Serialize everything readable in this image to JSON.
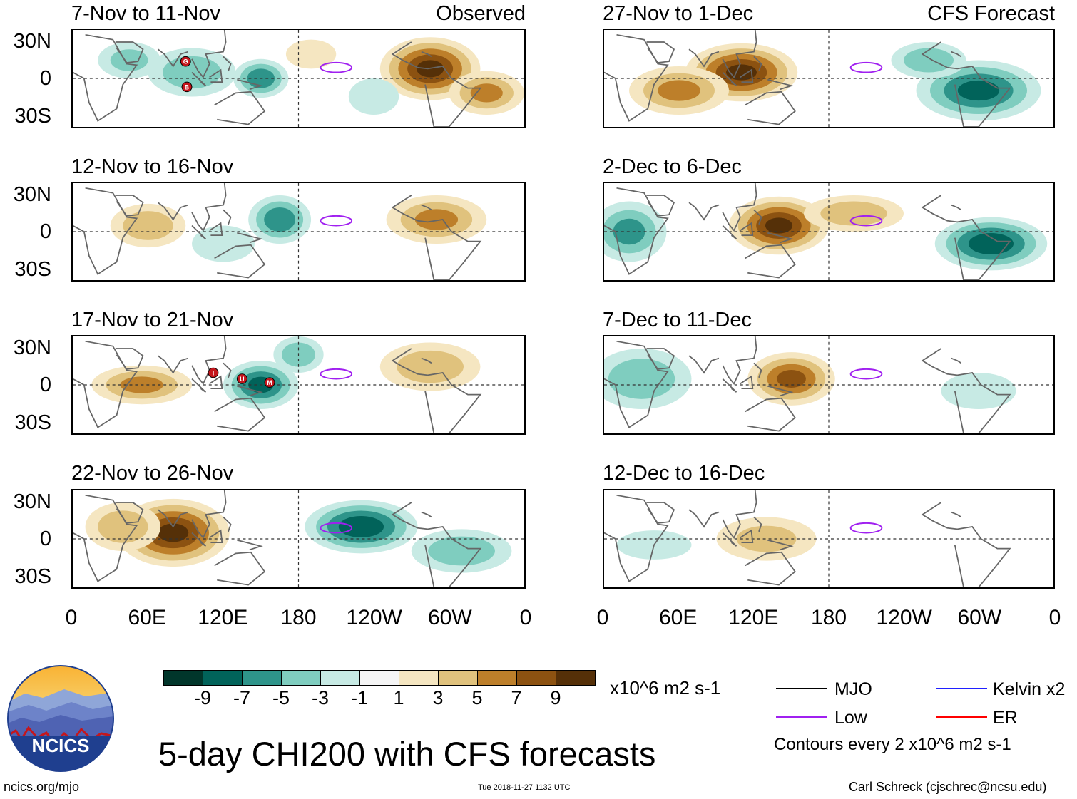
{
  "panels": [
    {
      "title": "7-Nov to 11-Nov",
      "tag": "Observed",
      "blobs": [
        {
          "sign": 1,
          "mag": 10,
          "lon": 285,
          "lat": 8,
          "rx": 40,
          "ry": 26
        },
        {
          "sign": 1,
          "mag": 6,
          "lon": 330,
          "lat": -12,
          "rx": 30,
          "ry": 18
        },
        {
          "sign": -1,
          "mag": 7,
          "lon": 150,
          "lat": 0,
          "rx": 22,
          "ry": 16
        },
        {
          "sign": -1,
          "mag": 5,
          "lon": 95,
          "lat": 5,
          "rx": 35,
          "ry": 20
        },
        {
          "sign": -1,
          "mag": 4,
          "lon": 45,
          "lat": 15,
          "rx": 25,
          "ry": 15
        },
        {
          "sign": -1,
          "mag": 3,
          "lon": 240,
          "lat": -15,
          "rx": 20,
          "ry": 15
        },
        {
          "sign": 1,
          "mag": 3,
          "lon": 190,
          "lat": 20,
          "rx": 20,
          "ry": 12
        }
      ],
      "cyclones": [
        {
          "letter": "G",
          "lon": 90,
          "lat": 14
        },
        {
          "letter": "B",
          "lon": 91,
          "lat": -7
        }
      ]
    },
    {
      "title": "27-Nov to 1-Dec",
      "tag": "CFS Forecast",
      "blobs": [
        {
          "sign": 1,
          "mag": 10,
          "lon": 110,
          "lat": 5,
          "rx": 45,
          "ry": 24
        },
        {
          "sign": 1,
          "mag": 6,
          "lon": 60,
          "lat": -10,
          "rx": 40,
          "ry": 20
        },
        {
          "sign": -1,
          "mag": 8,
          "lon": 300,
          "lat": -10,
          "rx": 50,
          "ry": 25
        },
        {
          "sign": -1,
          "mag": 5,
          "lon": 260,
          "lat": 15,
          "rx": 30,
          "ry": 15
        }
      ],
      "cyclones": []
    },
    {
      "title": "12-Nov to 16-Nov",
      "tag": "",
      "blobs": [
        {
          "sign": 1,
          "mag": 6,
          "lon": 290,
          "lat": 10,
          "rx": 40,
          "ry": 20
        },
        {
          "sign": 1,
          "mag": 5,
          "lon": 60,
          "lat": 5,
          "rx": 30,
          "ry": 18
        },
        {
          "sign": -1,
          "mag": 7,
          "lon": 165,
          "lat": 10,
          "rx": 25,
          "ry": 20
        },
        {
          "sign": -1,
          "mag": 3,
          "lon": 120,
          "lat": -10,
          "rx": 25,
          "ry": 15
        }
      ],
      "cyclones": []
    },
    {
      "title": "2-Dec to 6-Dec",
      "tag": "",
      "blobs": [
        {
          "sign": 1,
          "mag": 10,
          "lon": 140,
          "lat": 5,
          "rx": 40,
          "ry": 24
        },
        {
          "sign": 1,
          "mag": 5,
          "lon": 200,
          "lat": 15,
          "rx": 40,
          "ry": 15
        },
        {
          "sign": -1,
          "mag": 9,
          "lon": 310,
          "lat": -10,
          "rx": 45,
          "ry": 22
        },
        {
          "sign": -1,
          "mag": 6,
          "lon": 20,
          "lat": 0,
          "rx": 30,
          "ry": 25
        }
      ],
      "cyclones": []
    },
    {
      "title": "17-Nov to 21-Nov",
      "tag": "",
      "blobs": [
        {
          "sign": 1,
          "mag": 6,
          "lon": 55,
          "lat": 0,
          "rx": 40,
          "ry": 16
        },
        {
          "sign": 1,
          "mag": 5,
          "lon": 285,
          "lat": 15,
          "rx": 40,
          "ry": 20
        },
        {
          "sign": -1,
          "mag": 8,
          "lon": 150,
          "lat": 0,
          "rx": 30,
          "ry": 20
        },
        {
          "sign": -1,
          "mag": 5,
          "lon": 180,
          "lat": 25,
          "rx": 20,
          "ry": 15
        }
      ],
      "cyclones": [
        {
          "letter": "T",
          "lon": 112,
          "lat": 10
        },
        {
          "letter": "U",
          "lon": 135,
          "lat": 5
        },
        {
          "letter": "M",
          "lon": 157,
          "lat": 2
        }
      ]
    },
    {
      "title": "7-Dec to 11-Dec",
      "tag": "",
      "blobs": [
        {
          "sign": 1,
          "mag": 8,
          "lon": 150,
          "lat": 5,
          "rx": 35,
          "ry": 22
        },
        {
          "sign": -1,
          "mag": 5,
          "lon": 30,
          "lat": 5,
          "rx": 40,
          "ry": 25
        },
        {
          "sign": -1,
          "mag": 3,
          "lon": 300,
          "lat": -5,
          "rx": 30,
          "ry": 15
        }
      ],
      "cyclones": []
    },
    {
      "title": "22-Nov to 26-Nov",
      "tag": "",
      "blobs": [
        {
          "sign": 1,
          "mag": 10,
          "lon": 80,
          "lat": 5,
          "rx": 45,
          "ry": 28
        },
        {
          "sign": 1,
          "mag": 5,
          "lon": 40,
          "lat": 10,
          "rx": 30,
          "ry": 20
        },
        {
          "sign": -1,
          "mag": 9,
          "lon": 230,
          "lat": 10,
          "rx": 45,
          "ry": 22
        },
        {
          "sign": -1,
          "mag": 5,
          "lon": 310,
          "lat": -10,
          "rx": 40,
          "ry": 18
        }
      ],
      "cyclones": []
    },
    {
      "title": "12-Dec to 16-Dec",
      "tag": "",
      "blobs": [
        {
          "sign": 1,
          "mag": 4,
          "lon": 130,
          "lat": 0,
          "rx": 40,
          "ry": 18
        },
        {
          "sign": -1,
          "mag": 3,
          "lon": 40,
          "lat": -5,
          "rx": 30,
          "ry": 12
        }
      ],
      "cyclones": []
    }
  ],
  "lat_labels": [
    "30N",
    "0",
    "30S"
  ],
  "lon_labels": [
    "0",
    "60E",
    "120E",
    "180",
    "120W",
    "60W",
    "0"
  ],
  "colorbar": {
    "colors": [
      "#01362b",
      "#01635a",
      "#2e948a",
      "#7fcdbf",
      "#c7eae4",
      "#f5f5f5",
      "#f5e6c1",
      "#e0c27d",
      "#bd7f2a",
      "#8c5211",
      "#553008"
    ],
    "ticks": [
      "-9",
      "-7",
      "-5",
      "-3",
      "-1",
      "1",
      "3",
      "5",
      "7",
      "9"
    ],
    "units": "x10^6 m2 s-1"
  },
  "legend": {
    "mjo": {
      "label": "MJO",
      "color": "#000000"
    },
    "kelvin": {
      "label": "Kelvin x2",
      "color": "#2020ff"
    },
    "low": {
      "label": "Low",
      "color": "#a020f0"
    },
    "er": {
      "label": "ER",
      "color": "#ff0000"
    },
    "note": "Contours every 2 x10^6 m2 s-1"
  },
  "logo": {
    "text": "NCICS"
  },
  "title": "5-day CHI200 with CFS forecasts",
  "footer": {
    "url": "ncics.org/mjo",
    "timestamp": "Tue 2018-11-27 1132 UTC",
    "author": "Carl Schreck (cjschrec@ncsu.edu)"
  }
}
